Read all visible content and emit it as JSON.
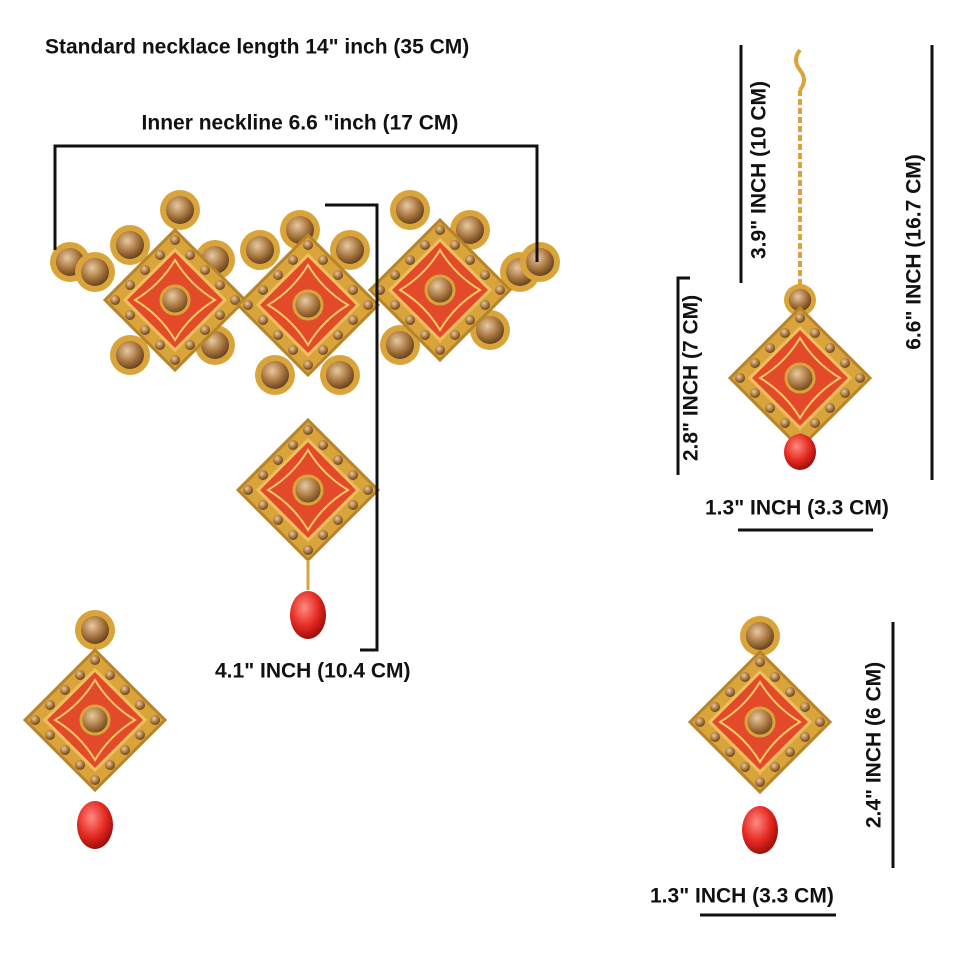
{
  "measurements": [
    {
      "label": "Standard necklace length 14\" inch (35 CM)"
    },
    {
      "label": "Inner neckline 6.6 \"inch (17 CM)"
    },
    {
      "label": "4.1\" INCH (10.4 CM)"
    },
    {
      "label": "3.9\" INCH (10 CM)"
    },
    {
      "label": "6.6\" INCH (16.7 CM)"
    },
    {
      "label": "2.8\" INCH (7 CM)"
    },
    {
      "label": "1.3\" INCH (3.3 CM)"
    },
    {
      "label": "2.4\" INCH (6 CM)"
    },
    {
      "label": "1.3\" INCH (3.3 CM)"
    }
  ]
}
